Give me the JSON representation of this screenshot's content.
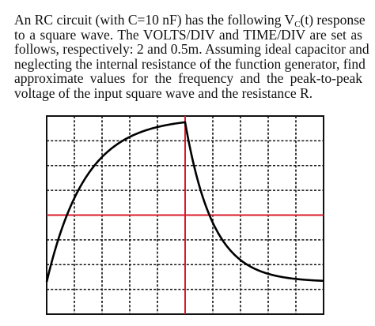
{
  "question": {
    "line1_pre": "An RC circuit (with C=10 nF) has the following V",
    "line1_sub": "C",
    "line1_post": "(t) response",
    "line2": "to a square wave. The VOLTS/DIV and TIME/DIV are set as",
    "line3": "follows, respectively: 2 and 0.5m. Assuming ideal capacitor and",
    "line4": "neglecting the internal resistance of the function generator, find",
    "line5": "approximate values for the frequency and the peak-to-peak",
    "line6": "voltage of the input square wave and the resistance R."
  },
  "scope": {
    "divisions_x": 10,
    "divisions_y": 8,
    "colors": {
      "frame": "#111111",
      "grid": "#111111",
      "axes": "#d81b2b",
      "trace": "#000000"
    },
    "trace": {
      "baseline_div_from_bottom": 1.3,
      "peak_div_from_bottom": 7.75,
      "step_div": 5,
      "time_constant_div": 1.4
    }
  }
}
